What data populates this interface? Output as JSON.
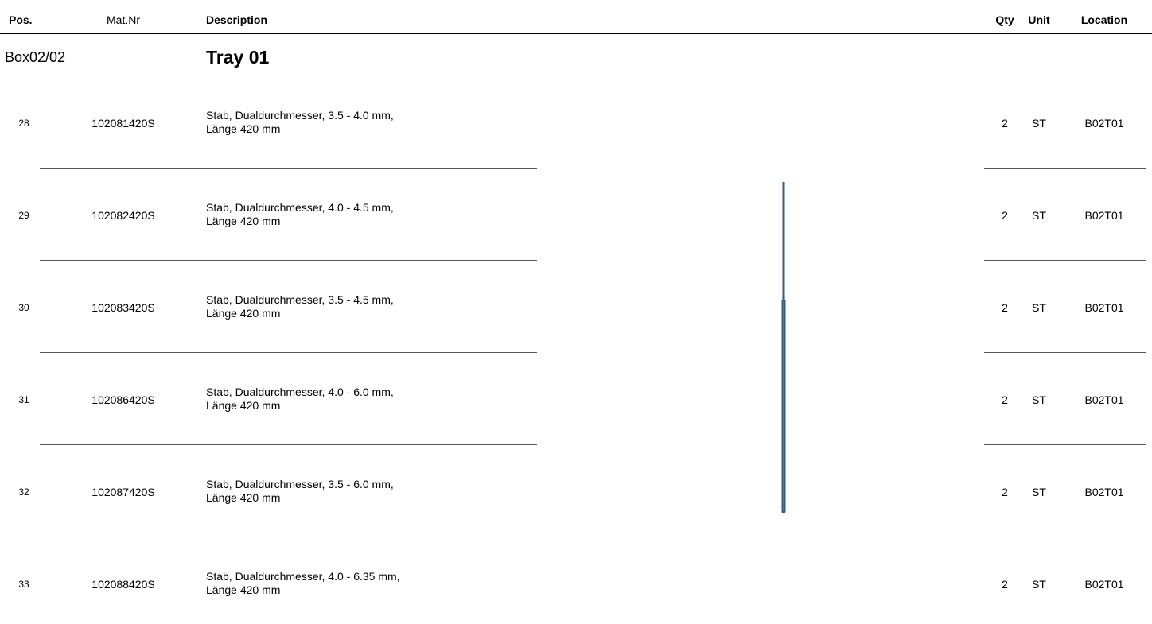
{
  "header": {
    "columns": [
      "Pos.",
      "Mat.Nr",
      "Description",
      "Qty",
      "Unit",
      "Location"
    ]
  },
  "box": "Box02/02",
  "tray": "Tray 01",
  "rows": [
    {
      "pos": "28",
      "mat": "102081420S",
      "description": [
        "Stab, Dualdurchmesser, 3.5 - 4.0 mm,",
        "Länge 420 mm"
      ],
      "qty": "2",
      "unit": "ST",
      "location": "B02T01"
    },
    {
      "pos": "29",
      "mat": "102082420S",
      "description": [
        "Stab, Dualdurchmesser, 4.0 - 4.5 mm,",
        "Länge 420 mm"
      ],
      "qty": "2",
      "unit": "ST",
      "location": "B02T01"
    },
    {
      "pos": "30",
      "mat": "102083420S",
      "description": [
        "Stab, Dualdurchmesser, 3.5 - 4.5 mm,",
        "Länge 420 mm"
      ],
      "qty": "2",
      "unit": "ST",
      "location": "B02T01"
    },
    {
      "pos": "31",
      "mat": "102086420S",
      "description": [
        "Stab, Dualdurchmesser, 4.0 - 6.0 mm,",
        "Länge 420 mm"
      ],
      "qty": "2",
      "unit": "ST",
      "location": "B02T01"
    },
    {
      "pos": "32",
      "mat": "102087420S",
      "description": [
        "Stab, Dualdurchmesser, 3.5 - 6.0 mm,",
        "Länge 420 mm"
      ],
      "qty": "2",
      "unit": "ST",
      "location": "B02T01"
    },
    {
      "pos": "33",
      "mat": "102088420S",
      "description": [
        "Stab, Dualdurchmesser, 4.0 - 6.35 mm,",
        "Länge 420 mm"
      ],
      "qty": "2",
      "unit": "ST",
      "location": "B02T01"
    }
  ]
}
